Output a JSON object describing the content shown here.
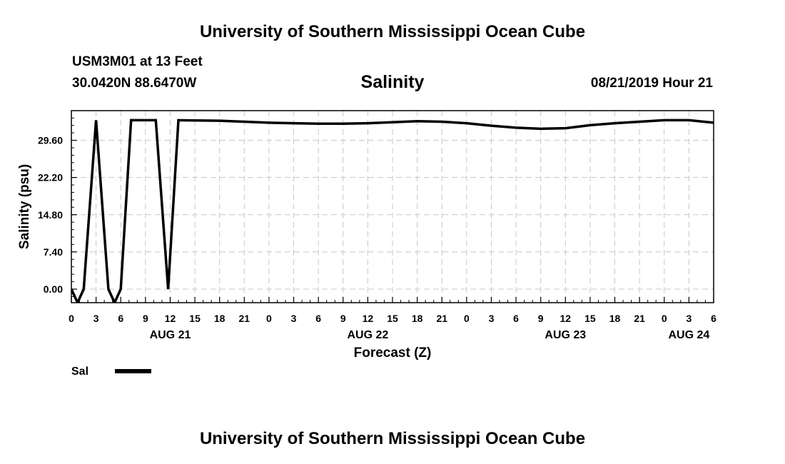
{
  "header": {
    "title_top": "University of Southern Mississippi Ocean Cube",
    "station": "USM3M01 at 13 Feet",
    "coords": "30.0420N 88.6470W",
    "variable": "Salinity",
    "datetime": "08/21/2019 Hour 21",
    "title_bottom": "University of Southern Mississippi Ocean Cube"
  },
  "chart_data": {
    "type": "line",
    "xlabel": "Forecast (Z)",
    "ylabel": "Salinity (psu)",
    "x_unit": "hours from 08/21 00Z",
    "xlim": [
      0,
      78
    ],
    "ylim": [
      -2.7,
      35.5
    ],
    "grid": true,
    "y_ticks": [
      0.0,
      7.4,
      14.8,
      22.2,
      29.6
    ],
    "y_tick_labels": [
      "0.00",
      "7.40",
      "14.80",
      "22.20",
      "29.60"
    ],
    "x_tick_labels": [
      "0",
      "3",
      "6",
      "9",
      "12",
      "15",
      "18",
      "21",
      "0",
      "3",
      "6",
      "9",
      "12",
      "15",
      "18",
      "21",
      "0",
      "3",
      "6",
      "9",
      "12",
      "15",
      "18",
      "21",
      "0",
      "3",
      "6"
    ],
    "date_labels": [
      {
        "label": "AUG 21",
        "hour": 12
      },
      {
        "label": "AUG 22",
        "hour": 36
      },
      {
        "label": "AUG 23",
        "hour": 60
      },
      {
        "label": "AUG 24",
        "hour": 75
      }
    ],
    "series": [
      {
        "name": "Sal",
        "color": "#000000",
        "x": [
          0,
          0.75,
          1.5,
          3,
          4.5,
          5.25,
          6,
          7.25,
          10.25,
          11.75,
          13,
          18,
          21,
          24,
          27,
          30,
          33,
          36,
          39,
          42,
          45,
          48,
          51,
          54,
          57,
          60,
          63,
          66,
          69,
          72,
          75,
          78
        ],
        "y": [
          0,
          -2.7,
          0,
          33.6,
          0,
          -2.7,
          0,
          33.6,
          33.6,
          0,
          33.6,
          33.5,
          33.3,
          33.1,
          33.0,
          32.9,
          32.9,
          33.0,
          33.2,
          33.4,
          33.3,
          33.0,
          32.5,
          32.1,
          31.9,
          32.0,
          32.6,
          33.0,
          33.3,
          33.6,
          33.6,
          33.1
        ]
      }
    ]
  }
}
